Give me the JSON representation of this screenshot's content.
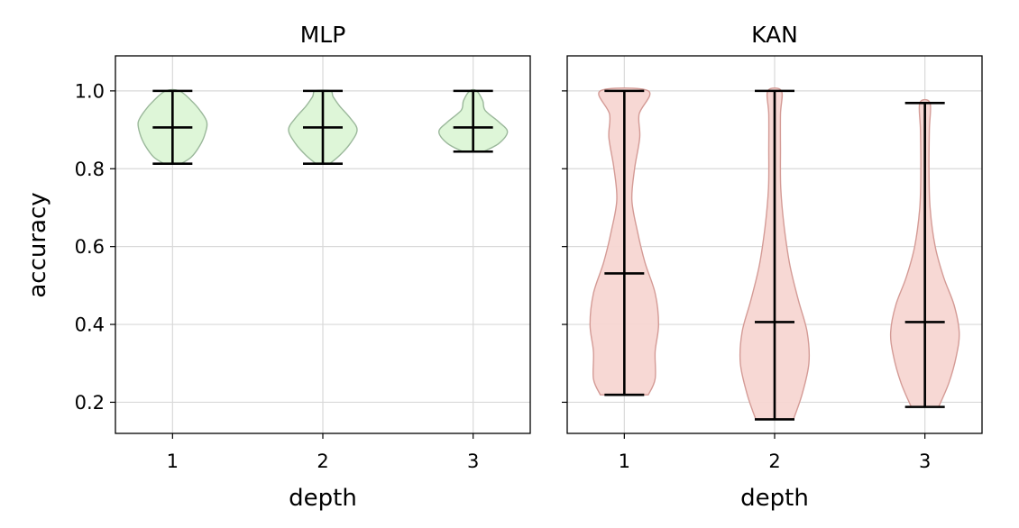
{
  "chart_data": [
    {
      "type": "violin",
      "title": "MLP",
      "xlabel": "depth",
      "ylabel": "accuracy",
      "categories": [
        "1",
        "2",
        "3"
      ],
      "x_ticks": [
        "1",
        "2",
        "3"
      ],
      "y_ticks": [
        "0.2",
        "0.4",
        "0.6",
        "0.8",
        "1.0"
      ],
      "ylim": [
        0.12,
        1.09
      ],
      "grid": true,
      "fill_color": "#dcf5d6",
      "edge_color": "#9bb89b",
      "series": [
        {
          "category": "1",
          "min": 0.813,
          "median": 0.906,
          "max": 1.0,
          "profile": [
            [
              0.813,
              0.25
            ],
            [
              0.83,
              0.55
            ],
            [
              0.86,
              0.8
            ],
            [
              0.89,
              0.95
            ],
            [
              0.92,
              1.0
            ],
            [
              0.95,
              0.8
            ],
            [
              0.975,
              0.55
            ],
            [
              1.0,
              0.2
            ]
          ]
        },
        {
          "category": "2",
          "min": 0.813,
          "median": 0.906,
          "max": 1.0,
          "profile": [
            [
              0.813,
              0.2
            ],
            [
              0.835,
              0.5
            ],
            [
              0.865,
              0.8
            ],
            [
              0.9,
              1.0
            ],
            [
              0.93,
              0.8
            ],
            [
              0.96,
              0.5
            ],
            [
              0.985,
              0.3
            ],
            [
              1.0,
              0.22
            ]
          ]
        },
        {
          "category": "3",
          "min": 0.844,
          "median": 0.906,
          "max": 1.0,
          "profile": [
            [
              0.844,
              0.3
            ],
            [
              0.865,
              0.75
            ],
            [
              0.895,
              1.0
            ],
            [
              0.92,
              0.75
            ],
            [
              0.95,
              0.35
            ],
            [
              0.975,
              0.28
            ],
            [
              1.0,
              0.1
            ]
          ]
        }
      ]
    },
    {
      "type": "violin",
      "title": "KAN",
      "xlabel": "depth",
      "ylabel": "",
      "categories": [
        "1",
        "2",
        "3"
      ],
      "x_ticks": [
        "1",
        "2",
        "3"
      ],
      "y_ticks": [],
      "ylim": [
        0.12,
        1.09
      ],
      "grid": true,
      "fill_color": "#f7d6d2",
      "edge_color": "#d49b96",
      "series": [
        {
          "category": "1",
          "min": 0.219,
          "median": 0.531,
          "max": 1.0,
          "profile": [
            [
              0.219,
              0.7
            ],
            [
              0.26,
              0.9
            ],
            [
              0.33,
              0.9
            ],
            [
              0.4,
              1.0
            ],
            [
              0.48,
              0.9
            ],
            [
              0.56,
              0.6
            ],
            [
              0.64,
              0.38
            ],
            [
              0.72,
              0.22
            ],
            [
              0.8,
              0.3
            ],
            [
              0.88,
              0.45
            ],
            [
              0.94,
              0.43
            ],
            [
              1.0,
              0.7
            ]
          ]
        },
        {
          "category": "2",
          "min": 0.156,
          "median": 0.406,
          "max": 1.0,
          "profile": [
            [
              0.156,
              0.55
            ],
            [
              0.22,
              0.8
            ],
            [
              0.3,
              1.0
            ],
            [
              0.38,
              0.95
            ],
            [
              0.46,
              0.7
            ],
            [
              0.55,
              0.45
            ],
            [
              0.65,
              0.28
            ],
            [
              0.75,
              0.18
            ],
            [
              0.85,
              0.17
            ],
            [
              0.94,
              0.17
            ],
            [
              1.0,
              0.2
            ]
          ]
        },
        {
          "category": "3",
          "min": 0.188,
          "median": 0.406,
          "max": 0.969,
          "profile": [
            [
              0.188,
              0.4
            ],
            [
              0.25,
              0.7
            ],
            [
              0.32,
              0.92
            ],
            [
              0.38,
              1.0
            ],
            [
              0.45,
              0.85
            ],
            [
              0.52,
              0.55
            ],
            [
              0.6,
              0.3
            ],
            [
              0.7,
              0.15
            ],
            [
              0.8,
              0.12
            ],
            [
              0.9,
              0.13
            ],
            [
              0.969,
              0.15
            ]
          ]
        }
      ]
    }
  ]
}
